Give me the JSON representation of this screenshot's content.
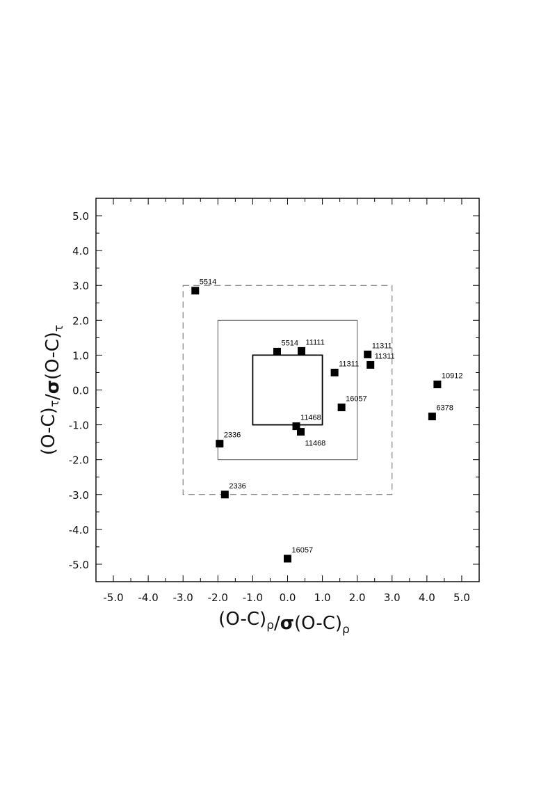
{
  "chart_data": {
    "type": "scatter",
    "xlabel": {
      "parts": [
        {
          "text": "(O-C)",
          "sub": false
        },
        {
          "text": "ρ",
          "sub": true
        },
        {
          "text": "/",
          "sub": false
        },
        {
          "text": "σ",
          "sub": false,
          "bold": true
        },
        {
          "text": "(O-C)",
          "sub": false
        },
        {
          "text": "ρ",
          "sub": true
        }
      ]
    },
    "ylabel": {
      "parts": [
        {
          "text": "(O-C)",
          "sub": false
        },
        {
          "text": "τ",
          "sub": true
        },
        {
          "text": "/",
          "sub": false
        },
        {
          "text": "σ",
          "sub": false,
          "bold": true
        },
        {
          "text": "(O-C)",
          "sub": false
        },
        {
          "text": "τ",
          "sub": true
        }
      ]
    },
    "xlim": [
      -5.5,
      5.5
    ],
    "ylim": [
      -5.5,
      5.5
    ],
    "x_ticks": [
      "-5.0",
      "-4.0",
      "-3.0",
      "-2.0",
      "-1.0",
      "0.0",
      "1.0",
      "2.0",
      "3.0",
      "4.0",
      "5.0"
    ],
    "y_ticks": [
      "5.0",
      "4.0",
      "3.0",
      "2.0",
      "1.0",
      "0.0",
      "-1.0",
      "-2.0",
      "-3.0",
      "-4.0",
      "-5.0"
    ],
    "minor_tick_step": 0.5,
    "grid": false,
    "reference_boxes": [
      {
        "half_width": 1,
        "style": "solid-thick"
      },
      {
        "half_width": 2,
        "style": "solid-thin"
      },
      {
        "half_width": 3,
        "style": "dashed"
      }
    ],
    "points": [
      {
        "x": -2.65,
        "y": 2.85,
        "label": "5514",
        "label_pos": "upper-right"
      },
      {
        "x": -0.3,
        "y": 1.1,
        "label": "5514",
        "label_pos": "upper-right"
      },
      {
        "x": 0.4,
        "y": 1.12,
        "label": "11111",
        "label_pos": "upper-right"
      },
      {
        "x": 2.3,
        "y": 1.02,
        "label": "11311",
        "label_pos": "upper-right"
      },
      {
        "x": 2.38,
        "y": 0.72,
        "label": "11311",
        "label_pos": "upper-right"
      },
      {
        "x": 1.35,
        "y": 0.5,
        "label": "11311",
        "label_pos": "upper-right"
      },
      {
        "x": 4.3,
        "y": 0.16,
        "label": "10912",
        "label_pos": "upper-right"
      },
      {
        "x": 4.15,
        "y": -0.76,
        "label": "6378",
        "label_pos": "upper-right"
      },
      {
        "x": 1.55,
        "y": -0.5,
        "label": "16057",
        "label_pos": "upper-right"
      },
      {
        "x": 0.25,
        "y": -1.04,
        "label": "11468",
        "label_pos": "upper-right"
      },
      {
        "x": 0.38,
        "y": -1.2,
        "label": "11468",
        "label_pos": "lower-right"
      },
      {
        "x": -1.95,
        "y": -1.54,
        "label": "2336",
        "label_pos": "upper-right"
      },
      {
        "x": -1.8,
        "y": -3.0,
        "label": "2336",
        "label_pos": "upper-right"
      },
      {
        "x": 0.0,
        "y": -4.84,
        "label": "16057",
        "label_pos": "upper-right"
      }
    ]
  }
}
